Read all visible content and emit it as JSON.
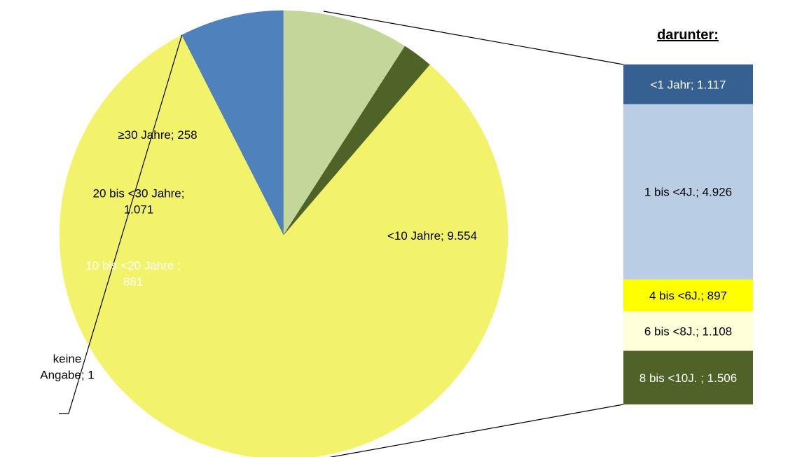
{
  "chart_data": {
    "type": "pie",
    "pie": {
      "slices": [
        {
          "label_lines": [
            "<10 Jahre; 9.554"
          ],
          "value": 9554,
          "color": "#f3f36b",
          "label_color": "#000000"
        },
        {
          "label_lines": [
            "keine",
            "Angabe; 1"
          ],
          "value": 1,
          "color": "#2e5a88",
          "label_color": "#000000"
        },
        {
          "label_lines": [
            "10 bis <20 Jahre ;",
            "881"
          ],
          "value": 881,
          "color": "#4f81bd",
          "label_color": "#ffffff"
        },
        {
          "label_lines": [
            "20 bis <30 Jahre;",
            "1.071"
          ],
          "value": 1071,
          "color": "#c4d79b",
          "label_color": "#000000"
        },
        {
          "label_lines": [
            "≥30 Jahre; 258"
          ],
          "value": 258,
          "color": "#4f6228",
          "label_color": "#000000"
        }
      ]
    },
    "breakdown": {
      "title": "darunter:",
      "parent": "<10 Jahre",
      "segments": [
        {
          "label": "<1 Jahr; 1.117",
          "value": 1117,
          "color": "#366092",
          "label_color": "#ffffff"
        },
        {
          "label": "1 bis <4J.; 4.926",
          "value": 4926,
          "color": "#b9cde5",
          "label_color": "#000000"
        },
        {
          "label": "4 bis <6J.; 897",
          "value": 897,
          "color": "#ffff00",
          "label_color": "#000000"
        },
        {
          "label": "6 bis <8J.; 1.108",
          "value": 1108,
          "color": "#ffffd9",
          "label_color": "#000000"
        },
        {
          "label": "8 bis <10J. ; 1.506",
          "value": 1506,
          "color": "#4f6228",
          "label_color": "#ffffff"
        }
      ]
    }
  }
}
